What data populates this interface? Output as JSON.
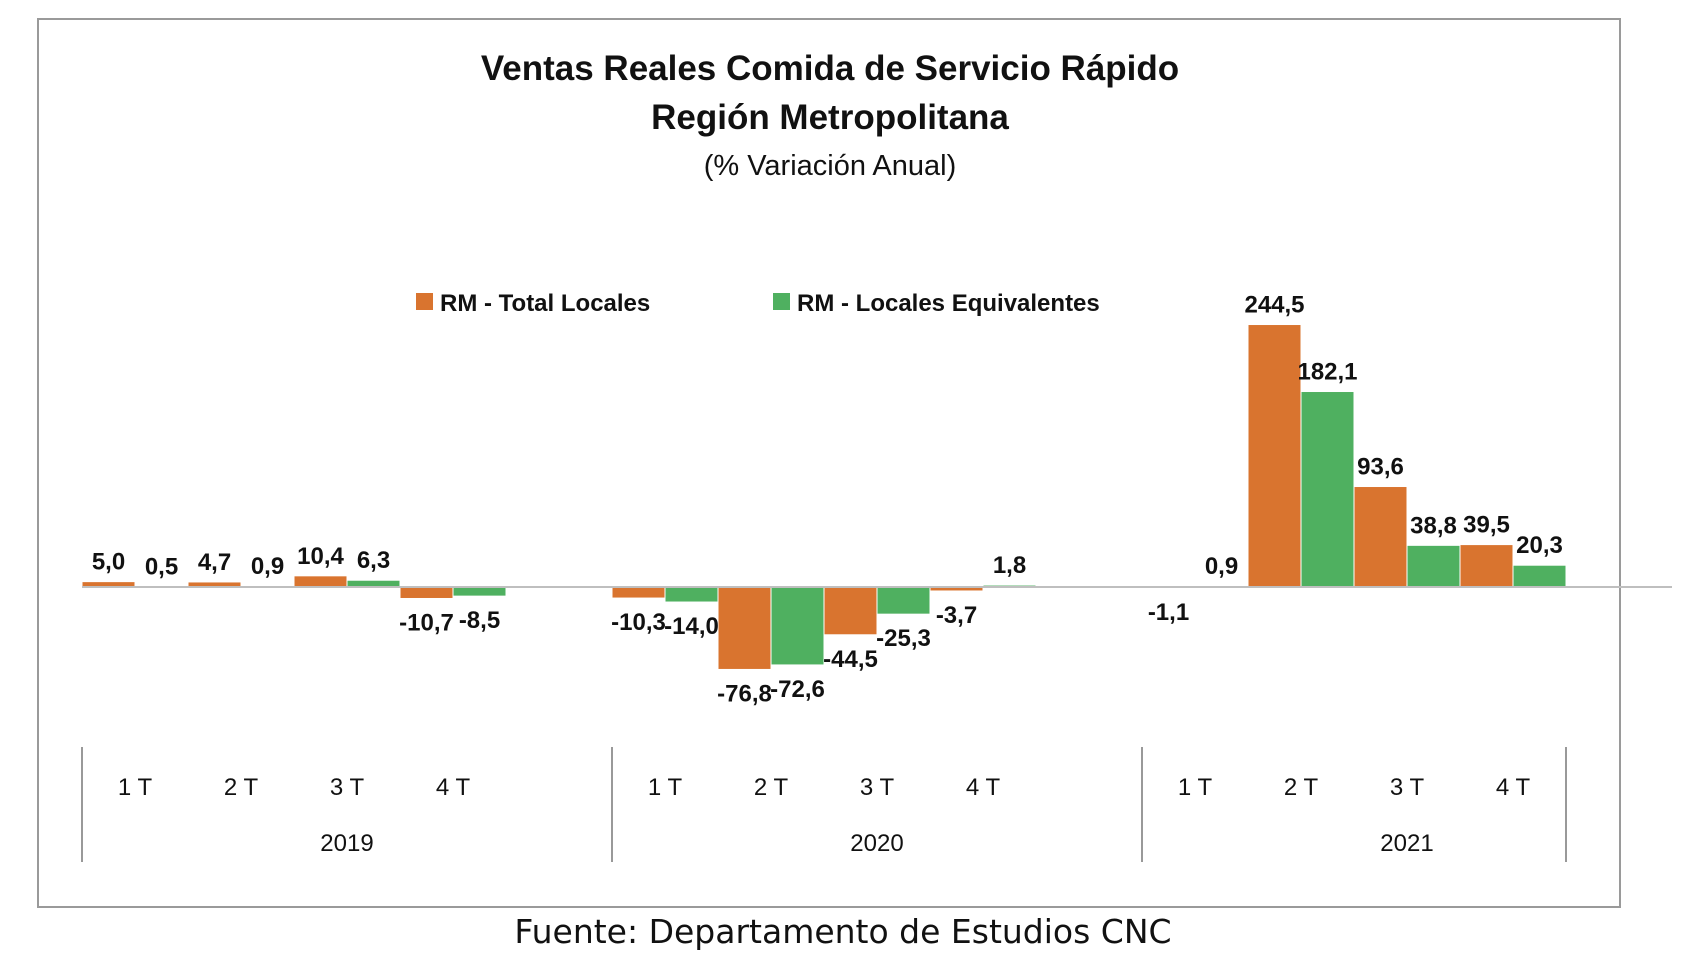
{
  "chart_data": {
    "type": "bar",
    "title": "Ventas Reales Comida de Servicio Rápido",
    "subtitle": "Región Metropolitana",
    "unit_label": "(% Variación Anual)",
    "xlabel": "",
    "ylabel": "",
    "groups": [
      {
        "year": "2019",
        "categories": [
          "1 T",
          "2 T",
          "3 T",
          "4 T"
        ]
      },
      {
        "year": "2020",
        "categories": [
          "1 T",
          "2 T",
          "3 T",
          "4 T"
        ]
      },
      {
        "year": "2021",
        "categories": [
          "1 T",
          "2 T",
          "3 T",
          "4 T"
        ]
      }
    ],
    "series": [
      {
        "name": "RM - Total Locales",
        "color": "#d9742f",
        "values": [
          5.0,
          4.7,
          10.4,
          -10.7,
          -10.3,
          -76.8,
          -44.5,
          -3.7,
          -1.1,
          244.5,
          93.6,
          39.5
        ],
        "labels": [
          "5,0",
          "4,7",
          "10,4",
          "-10,7",
          "-10,3",
          "-76,8",
          "-44,5",
          "-3,7",
          "-1,1",
          "244,5",
          "93,6",
          "39,5"
        ]
      },
      {
        "name": "RM - Locales Equivalentes",
        "color": "#4fb060",
        "values": [
          0.5,
          0.9,
          6.3,
          -8.5,
          -14.0,
          -72.6,
          -25.3,
          1.8,
          0.9,
          182.1,
          38.8,
          20.3
        ],
        "labels": [
          "0,5",
          "0,9",
          "6,3",
          "-8,5",
          "-14,0",
          "-72,6",
          "-25,3",
          "1,8",
          "0,9",
          "182,1",
          "38,8",
          "20,3"
        ]
      }
    ],
    "ylim": [
      -80,
      250
    ],
    "grid": false,
    "legend_position": "top"
  },
  "source": "Fuente: Departamento de Estudios CNC"
}
